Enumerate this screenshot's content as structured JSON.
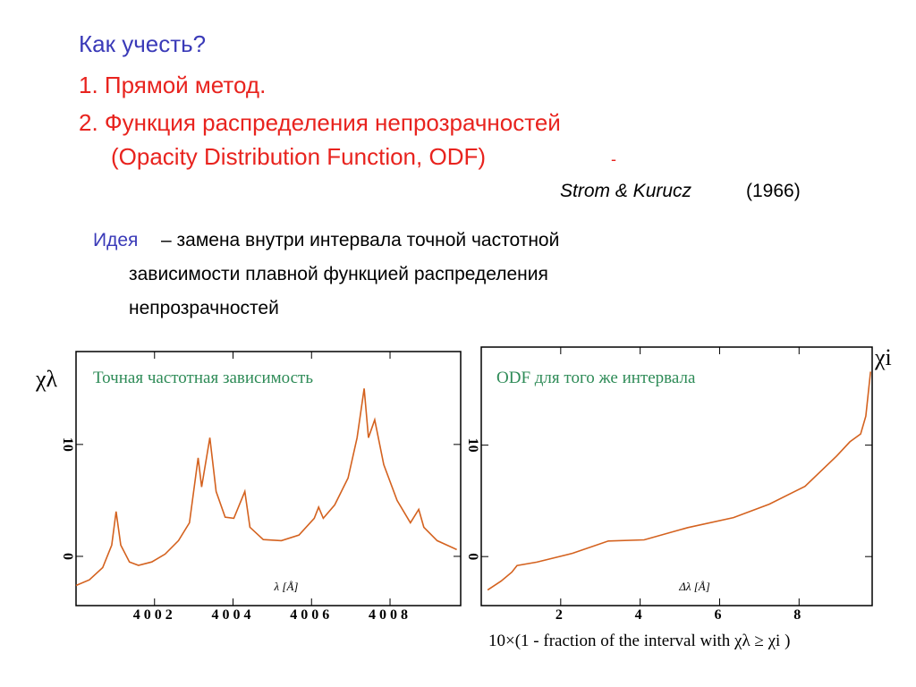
{
  "slide": {
    "heading": "Как учесть?",
    "items": [
      "1. Прямой метод.",
      "2. Функция распределения непрозрачностей",
      "(Opacity Distribution Function, ODF)",
      "-"
    ],
    "reference": {
      "authors": "Strom & Kurucz",
      "year": "(1966)"
    },
    "idea": {
      "term": "Идея",
      "lines": [
        "– замена внутри интервала точной частотной",
        "зависимости плавной функцией распределения",
        "непрозрачностей"
      ]
    },
    "caption": "10×(1 - fraction of the interval with χλ ≥ χi )"
  },
  "chart_data": [
    {
      "type": "line",
      "title": "Точная частотная зависимость",
      "xlabel": "λ  [Å]",
      "ylabel": "χλ",
      "x": [
        4000.0,
        4000.34,
        4000.68,
        4000.91,
        4001.02,
        4001.14,
        4001.36,
        4001.59,
        4001.93,
        4002.27,
        4002.61,
        4002.89,
        4003.11,
        4003.2,
        4003.41,
        4003.57,
        4003.8,
        4004.02,
        4004.3,
        4004.43,
        4004.77,
        4005.23,
        4005.68,
        4006.07,
        4006.18,
        4006.3,
        4006.59,
        4006.93,
        4007.16,
        4007.34,
        4007.45,
        4007.61,
        4007.84,
        4008.18,
        4008.52,
        4008.73,
        4008.86,
        4009.2,
        4009.7
      ],
      "series": [
        {
          "color": "#d4621f",
          "values": [
            -2.6,
            -2.1,
            -1.0,
            1.0,
            4.0,
            1.0,
            -0.5,
            -0.8,
            -0.5,
            0.2,
            1.4,
            3.0,
            8.8,
            6.2,
            10.6,
            5.8,
            3.5,
            3.4,
            5.8,
            2.6,
            1.5,
            1.4,
            1.9,
            3.4,
            4.4,
            3.4,
            4.6,
            7.0,
            10.6,
            15.0,
            10.6,
            12.2,
            8.2,
            5.0,
            3.0,
            4.2,
            2.6,
            1.4,
            0.6
          ]
        }
      ],
      "xlim": [
        4000,
        4009.8
      ],
      "xticks": [
        4002,
        4004,
        4006,
        4008
      ],
      "ylim": [
        -4.4,
        18.3
      ],
      "yticks": [
        0,
        10
      ]
    },
    {
      "type": "line",
      "title": "ODF для того же интервала",
      "xlabel": "Δλ  [Å]",
      "ylabel": "χi",
      "x": [
        0.16,
        0.5,
        0.77,
        0.9,
        1.4,
        2.3,
        3.2,
        4.1,
        5.2,
        6.35,
        7.25,
        8.15,
        8.94,
        9.28,
        9.55,
        9.68,
        9.8
      ],
      "series": [
        {
          "color": "#d4621f",
          "values": [
            -3.0,
            -2.2,
            -1.4,
            -0.8,
            -0.5,
            0.3,
            1.4,
            1.5,
            2.6,
            3.5,
            4.7,
            6.3,
            9.0,
            10.3,
            11.0,
            12.6,
            16.6
          ]
        }
      ],
      "xlim": [
        0,
        9.84
      ],
      "xticks": [
        2,
        4,
        6,
        8
      ],
      "ylim": [
        -4.4,
        18.8
      ],
      "yticks": [
        0,
        10
      ]
    }
  ]
}
